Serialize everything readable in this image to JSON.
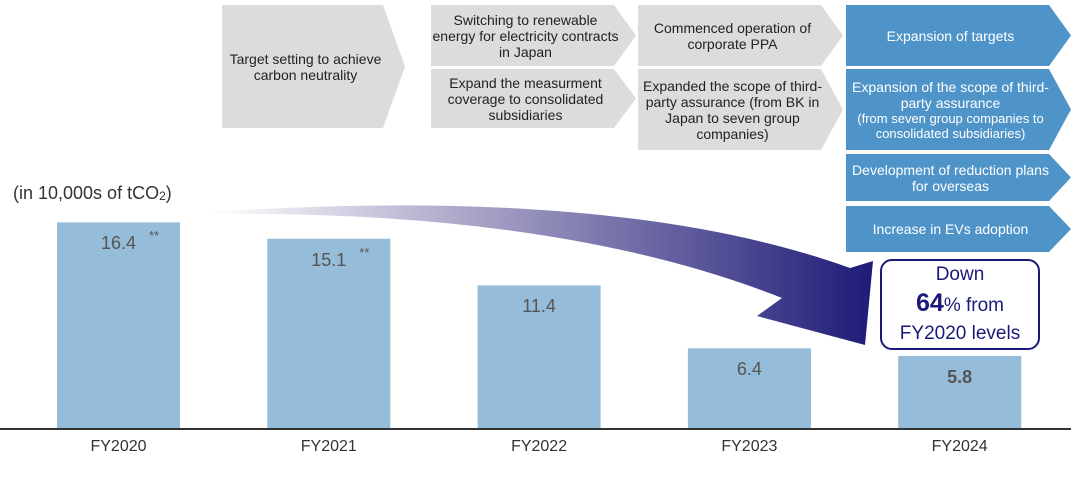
{
  "chart_data": {
    "type": "bar",
    "ylabel": "(in 10,000s of tCO2)",
    "categories": [
      "FY2020",
      "FY2021",
      "FY2022",
      "FY2023",
      "FY2024"
    ],
    "values": [
      16.4,
      15.1,
      11.4,
      6.4,
      5.8
    ],
    "labels": [
      "16.4",
      "15.1",
      "11.4",
      "6.4",
      "5.8"
    ],
    "footnote_marks": [
      "**",
      "**",
      "",
      "",
      ""
    ],
    "ylim": [
      0,
      17
    ],
    "bar_color": "#95bcd8",
    "grid": false
  },
  "milestones": {
    "fy2021": [
      "Target setting to achieve carbon neutrality"
    ],
    "fy2022": [
      "Switching to renewable energy for electricity contracts in Japan",
      "Expand the measurment coverage to consolidated subsidiaries"
    ],
    "fy2023": [
      "Commenced operation of corporate PPA",
      "Expanded the scope of third-party assurance (from BK in Japan to seven group companies)"
    ],
    "fy2024": [
      "Expansion of targets",
      "Expansion of the scope of third-party assurance",
      "(from seven group companies to consolidated subsidiaries)",
      "Development of reduction plans for overseas",
      "Increase in EVs adoption"
    ]
  },
  "callout": {
    "line1": "Down",
    "pct": "64",
    "line2": "% from",
    "line3": "FY2020 levels"
  },
  "colors": {
    "gray_chevron": "#dcdcdc",
    "blue_chevron": "#4f94c8",
    "arrow_dark": "#1e1a78",
    "callout": "#1a1a7a"
  }
}
